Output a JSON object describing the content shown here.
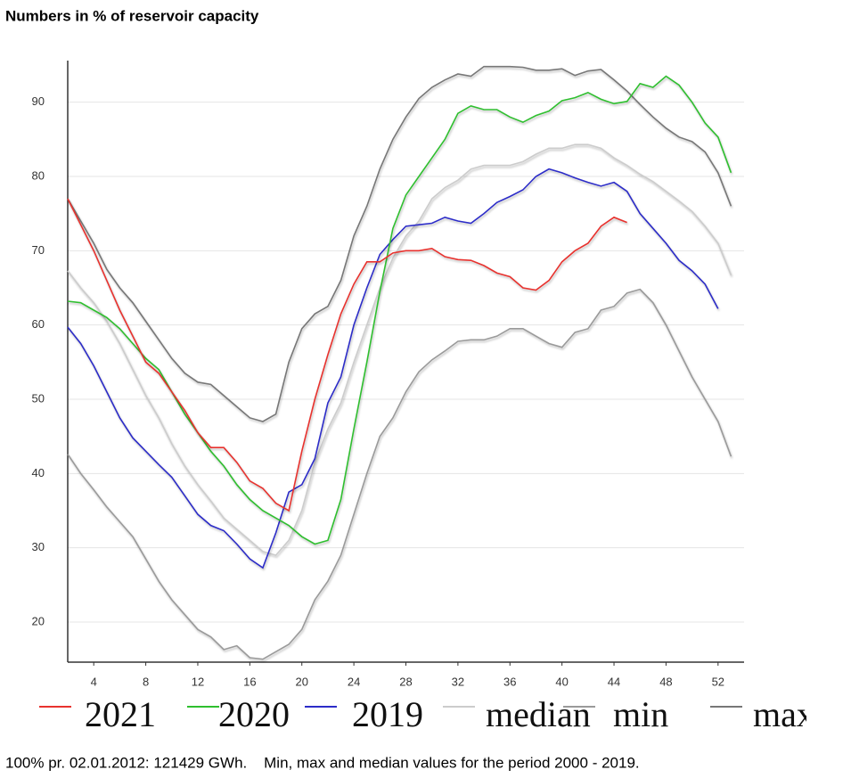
{
  "chart_data": {
    "type": "line",
    "title": "Numbers in % of reservoir capacity",
    "note": "100% pr. 02.01.2012: 121429 GWh.    Min, max and median values for the period 2000 - 2019.",
    "x": [
      2,
      3,
      4,
      5,
      6,
      7,
      8,
      9,
      10,
      11,
      12,
      13,
      14,
      15,
      16,
      17,
      18,
      19,
      20,
      21,
      22,
      23,
      24,
      25,
      26,
      27,
      28,
      29,
      30,
      31,
      32,
      33,
      34,
      35,
      36,
      37,
      38,
      39,
      40,
      41,
      42,
      43,
      44,
      45,
      46,
      47,
      48,
      49,
      50,
      51,
      52,
      53
    ],
    "xlim": [
      2,
      54
    ],
    "xticks": [
      4,
      8,
      12,
      16,
      20,
      24,
      28,
      32,
      36,
      40,
      44,
      48,
      52
    ],
    "ylim": [
      14.6,
      95.6
    ],
    "yticks": [
      20,
      30,
      40,
      50,
      60,
      70,
      80,
      90
    ],
    "grid": true,
    "series": [
      {
        "name": "2021",
        "color": "#e8322e",
        "values": [
          77,
          73.5,
          70,
          66,
          62,
          58.5,
          55,
          53.5,
          51,
          48.5,
          45.5,
          43.5,
          43.5,
          41.5,
          39,
          38,
          36,
          35,
          43,
          50,
          56,
          61.5,
          65.5,
          68.5,
          68.5,
          69.7,
          70,
          70,
          70.3,
          69.2,
          68.8,
          68.7,
          68,
          67,
          66.5,
          65,
          64.7,
          66,
          68.5,
          70,
          71,
          73.3,
          74.5,
          73.8,
          null,
          null,
          null,
          null,
          null,
          null,
          null,
          null
        ]
      },
      {
        "name": "2020",
        "color": "#2fbf2f",
        "values": [
          63.2,
          63,
          62,
          61,
          59.5,
          57.5,
          55.5,
          54,
          51,
          48,
          45.5,
          43,
          41,
          38.5,
          36.5,
          35,
          34,
          33,
          31.5,
          30.5,
          31,
          36.5,
          46,
          55,
          64.5,
          73,
          77.5,
          80,
          82.5,
          85,
          88.5,
          89.5,
          89,
          89,
          88,
          87.3,
          88.2,
          88.8,
          90.2,
          90.6,
          91.3,
          90.4,
          89.8,
          90.1,
          92.5,
          92,
          93.5,
          92.3,
          90,
          87.2,
          85.3,
          80.5
        ]
      },
      {
        "name": "2019",
        "color": "#2c2cc8",
        "values": [
          59.7,
          57.5,
          54.5,
          51,
          47.5,
          44.8,
          43,
          41.2,
          39.5,
          37,
          34.5,
          33,
          32.3,
          30.5,
          28.5,
          27.3,
          32,
          37.5,
          38.5,
          42,
          49.5,
          53,
          60,
          65,
          69.5,
          71.5,
          73.3,
          73.5,
          73.7,
          74.5,
          74,
          73.7,
          75,
          76.5,
          77.3,
          78.2,
          80,
          81,
          80.5,
          79.8,
          79.2,
          78.7,
          79.2,
          78,
          75,
          73,
          71,
          68.7,
          67.3,
          65.5,
          62.2,
          null
        ]
      },
      {
        "name": "median",
        "color": "#cccccc",
        "values": [
          67.3,
          65,
          63,
          60.5,
          57.5,
          54,
          50.5,
          47.5,
          44,
          41,
          38.5,
          36.3,
          34,
          32.5,
          31,
          29.5,
          29,
          31,
          35,
          41.5,
          46,
          49.5,
          55,
          60,
          65,
          69,
          72,
          74,
          77,
          78.5,
          79.5,
          81,
          81.5,
          81.5,
          81.5,
          82,
          83,
          83.8,
          83.8,
          84.3,
          84.3,
          83.8,
          82.5,
          81.5,
          80.3,
          79.3,
          78,
          76.7,
          75.3,
          73.3,
          71,
          66.7
        ]
      },
      {
        "name": "min",
        "color": "#9a9a9a",
        "values": [
          42.6,
          40,
          37.8,
          35.5,
          33.5,
          31.5,
          28.5,
          25.5,
          23,
          21,
          19,
          18,
          16.3,
          16.8,
          15.2,
          15,
          16,
          17,
          19,
          23,
          25.5,
          29,
          34.5,
          40,
          45,
          47.5,
          51,
          53.7,
          55.3,
          56.5,
          57.8,
          58,
          58,
          58.5,
          59.5,
          59.5,
          58.5,
          57.5,
          57,
          59,
          59.5,
          62,
          62.5,
          64.3,
          64.8,
          63,
          60,
          56.5,
          53,
          50,
          47,
          42.3
        ]
      },
      {
        "name": "max",
        "color": "#777777",
        "values": [
          77,
          74,
          71,
          67.5,
          65,
          63,
          60.5,
          58,
          55.5,
          53.5,
          52.3,
          52,
          50.5,
          49,
          47.5,
          47,
          48,
          55,
          59.5,
          61.5,
          62.5,
          66,
          72,
          76,
          81,
          85,
          88,
          90.5,
          92,
          93,
          93.8,
          93.5,
          94.8,
          94.8,
          94.8,
          94.7,
          94.3,
          94.3,
          94.5,
          93.6,
          94.2,
          94.4,
          93,
          91.5,
          89.7,
          88,
          86.5,
          85.3,
          84.7,
          83.3,
          80.5,
          76
        ]
      }
    ]
  }
}
